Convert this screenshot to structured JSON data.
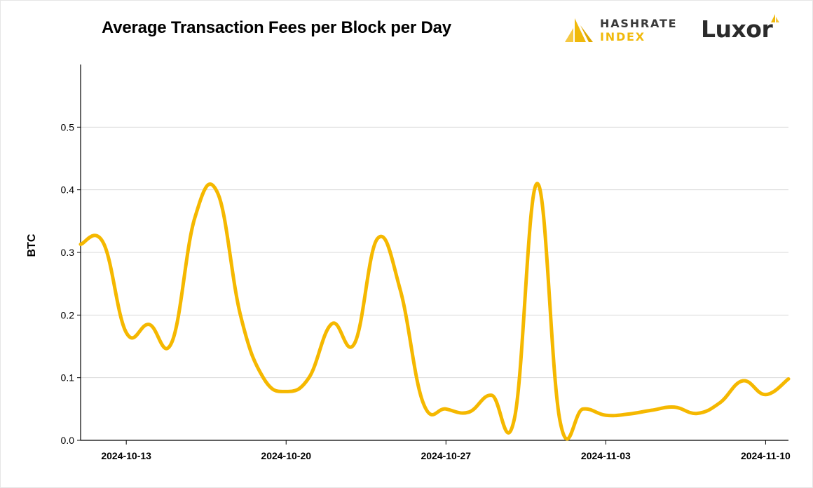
{
  "title": "Average Transaction Fees per Block per Day",
  "logos": {
    "hashrate_index_line1": "HASHRATE",
    "hashrate_index_line2": "INDEX",
    "luxor": "Luxor"
  },
  "chart_data": {
    "type": "line",
    "title": "Average Transaction Fees per Block per Day",
    "xlabel": "",
    "ylabel": "BTC",
    "ylim": [
      0,
      0.6
    ],
    "yticks": [
      0.0,
      0.1,
      0.2,
      0.3,
      0.4,
      0.5
    ],
    "ytick_labels": [
      "0.0",
      "0.1",
      "0.2",
      "0.3",
      "0.4",
      "0.5"
    ],
    "xlim": [
      "2024-10-11",
      "2024-11-11"
    ],
    "xtick_labels": [
      "2024-10-13",
      "2024-10-20",
      "2024-10-27",
      "2024-11-03",
      "2024-11-10"
    ],
    "grid": "horizontal",
    "color": "#f5b800",
    "series": [
      {
        "x": [
          "2024-10-11",
          "2024-10-12",
          "2024-10-13",
          "2024-10-14",
          "2024-10-15",
          "2024-10-16",
          "2024-10-17",
          "2024-10-18",
          "2024-10-19",
          "2024-10-20",
          "2024-10-21",
          "2024-10-22",
          "2024-10-23",
          "2024-10-24",
          "2024-10-25",
          "2024-10-26",
          "2024-10-27",
          "2024-10-28",
          "2024-10-29",
          "2024-10-30",
          "2024-10-31",
          "2024-11-01",
          "2024-11-02",
          "2024-11-03",
          "2024-11-04",
          "2024-11-05",
          "2024-11-06",
          "2024-11-07",
          "2024-11-08",
          "2024-11-09",
          "2024-11-10",
          "2024-11-11"
        ],
        "y": [
          0.313,
          0.315,
          0.172,
          0.185,
          0.157,
          0.355,
          0.395,
          0.2,
          0.1,
          0.078,
          0.1,
          0.186,
          0.155,
          0.322,
          0.24,
          0.06,
          0.05,
          0.045,
          0.072,
          0.035,
          0.41,
          0.03,
          0.05,
          0.04,
          0.042,
          0.048,
          0.053,
          0.043,
          0.06,
          0.095,
          0.073,
          0.098
        ]
      }
    ]
  }
}
